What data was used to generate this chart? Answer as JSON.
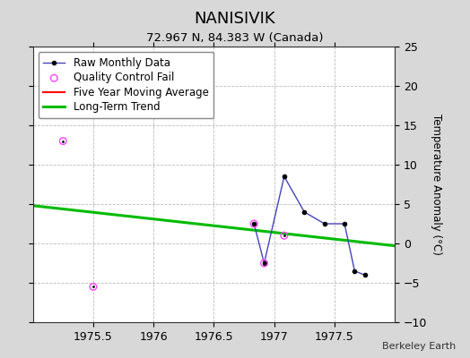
{
  "title": "NANISIVIK",
  "subtitle": "72.967 N, 84.383 W (Canada)",
  "ylabel": "Temperature Anomaly (°C)",
  "watermark": "Berkeley Earth",
  "xlim": [
    1975.0,
    1978.0
  ],
  "ylim": [
    -10,
    25
  ],
  "yticks": [
    -10,
    -5,
    0,
    5,
    10,
    15,
    20,
    25
  ],
  "xticks": [
    1975.5,
    1976.0,
    1976.5,
    1977.0,
    1977.5
  ],
  "xticklabels": [
    "1975.5",
    "1976",
    "1976.5",
    "1977",
    "1977.5"
  ],
  "raw_x": [
    1976.833,
    1976.917,
    1977.083,
    1977.25,
    1977.417,
    1977.583,
    1977.667,
    1977.75
  ],
  "raw_y": [
    2.5,
    -2.5,
    8.5,
    4.0,
    2.5,
    2.5,
    -3.5,
    -4.0
  ],
  "qc_x": [
    1975.25,
    1975.5,
    1976.833,
    1976.917,
    1977.083
  ],
  "qc_y": [
    13.0,
    -5.5,
    2.5,
    -2.5,
    1.0
  ],
  "trend_x": [
    1975.0,
    1978.0
  ],
  "trend_y": [
    4.8,
    -0.3
  ],
  "background_color": "#d8d8d8",
  "plot_bg_color": "#ffffff",
  "raw_line_color": "#4444bb",
  "raw_dot_color": "#000000",
  "qc_color": "#ff44ff",
  "moving_avg_color": "#ff0000",
  "trend_color": "#00bb00",
  "legend_fontsize": 8.5,
  "title_fontsize": 13,
  "subtitle_fontsize": 9.5,
  "watermark_fontsize": 8
}
